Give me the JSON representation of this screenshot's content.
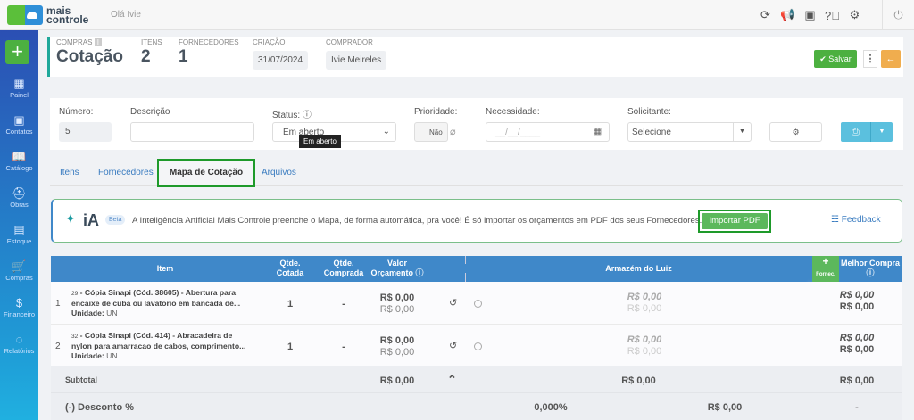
{
  "topbar": {
    "brand": "mais controle",
    "greeting": "Olá Ivie",
    "icons": [
      "refresh-icon",
      "megaphone-icon",
      "gift-icon",
      "help-icon",
      "gear-icon",
      "power-icon"
    ]
  },
  "sidebar": {
    "items": [
      {
        "label": "Painel",
        "icon": "grid-icon"
      },
      {
        "label": "Contatos",
        "icon": "contact-icon"
      },
      {
        "label": "Catálogo",
        "icon": "book-icon"
      },
      {
        "label": "Obras",
        "icon": "helmet-icon"
      },
      {
        "label": "Estoque",
        "icon": "boxes-icon"
      },
      {
        "label": "Compras",
        "icon": "cart-icon"
      },
      {
        "label": "Financeiro",
        "icon": "dollar-icon"
      },
      {
        "label": "Relatórios",
        "icon": "chart-ring-icon"
      }
    ]
  },
  "header": {
    "section": "COMPRAS",
    "title": "Cotação",
    "itens_label": "ITENS",
    "itens": "2",
    "fornecedores_label": "FORNECEDORES",
    "fornecedores": "1",
    "criacao_label": "CRIAÇÃO",
    "criacao": "31/07/2024",
    "comprador_label": "COMPRADOR",
    "comprador": "Ivie Meireles",
    "save": "Salvar"
  },
  "form": {
    "numero_label": "Número:",
    "numero": "5",
    "descricao_label": "Descrição",
    "descricao": "",
    "status_label": "Status:",
    "status": "Em aberto",
    "tooltip": "Em aberto",
    "prioridade_label": "Prioridade:",
    "prioridade": "Não",
    "necessidade_label": "Necessidade:",
    "necessidade_placeholder": "__/__/____",
    "solicitante_label": "Solicitante:",
    "solicitante": "Selecione"
  },
  "tabs": [
    "Itens",
    "Fornecedores",
    "Mapa de Cotação",
    "Arquivos"
  ],
  "active_tab": "Mapa de Cotação",
  "ia": {
    "logo": "iA",
    "badge": "Beta",
    "text": "A Inteligência Artificial Mais Controle preenche o Mapa, de forma automática, pra você! É só importar os orçamentos em PDF dos seus Fornecedores.",
    "import": "Importar PDF",
    "feedback": "Feedback"
  },
  "table": {
    "headers": {
      "item": "Item",
      "cotada": "Qtde. Cotada",
      "comprada": "Qtde. Comprada",
      "valor": "Valor Orçamento",
      "fornecedor": "Armazém do Luiz",
      "add": "Fornec.",
      "melhor": "Melhor Compra"
    },
    "rows": [
      {
        "n": "1",
        "code": "29",
        "desc1": "- Cópia Sinapi (Cód. 38605) - Abertura para",
        "desc2": "encaixe de cuba ou lavatorio em bancada de...",
        "unit_label": "Unidade:",
        "unit": "UN",
        "cotada": "1",
        "comprada": "-",
        "v1": "R$ 0,00",
        "v2": "R$ 0,00",
        "f1": "R$ 0,00",
        "f2": "R$ 0,00",
        "m1": "R$ 0,00",
        "m2": "R$ 0,00"
      },
      {
        "n": "2",
        "code": "32",
        "desc1": "- Cópia Sinapi (Cód. 414) - Abracadeira de",
        "desc2": "nylon para amarracao de cabos, comprimento...",
        "unit_label": "Unidade:",
        "unit": "UN",
        "cotada": "1",
        "comprada": "-",
        "v1": "R$ 0,00",
        "v2": "R$ 0,00",
        "f1": "R$ 0,00",
        "f2": "R$ 0,00",
        "m1": "R$ 0,00",
        "m2": "R$ 0,00"
      }
    ],
    "subtotal": {
      "label": "Subtotal",
      "valor": "R$ 0,00",
      "fornecedor": "R$ 0,00",
      "melhor": "R$ 0,00"
    },
    "desconto": {
      "label": "(-) Desconto %",
      "pct": "0,000%",
      "valor": "R$ 0,00",
      "melhor": "-"
    }
  },
  "colors": {
    "primary": "#3f88c9",
    "success": "#4cb040",
    "warning": "#f0ad4e",
    "info": "#5bc0de"
  }
}
